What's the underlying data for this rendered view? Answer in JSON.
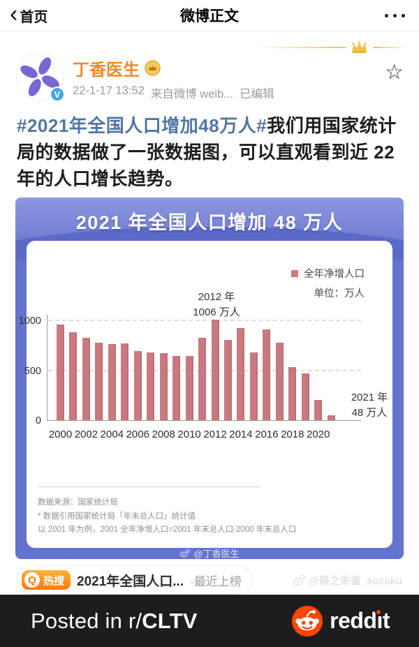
{
  "nav": {
    "back_label": "首页",
    "title": "微博正文"
  },
  "post": {
    "author": "丁香医生",
    "timestamp": "22-1-17 13:52",
    "source": "来自微博 weib...",
    "edited": "已编辑",
    "hashtag": "#2021年全国人口增加48万人#",
    "body": "我们用国家统计局的数据做了一张数据图，可以直观看到近 22 年的人口增长趋势。"
  },
  "chart_data": {
    "type": "bar",
    "title": "2021 年全国人口增加 48 万人",
    "legend": "全年净增人口",
    "unit_label": "单位：万人",
    "categories": [
      2000,
      2001,
      2002,
      2003,
      2004,
      2005,
      2006,
      2007,
      2008,
      2009,
      2010,
      2011,
      2012,
      2013,
      2014,
      2015,
      2016,
      2017,
      2018,
      2019,
      2020,
      2021
    ],
    "values": [
      957,
      884,
      826,
      774,
      761,
      768,
      692,
      681,
      673,
      646,
      641,
      825,
      1006,
      804,
      920,
      680,
      906,
      779,
      530,
      467,
      204,
      48
    ],
    "yticks": [
      0,
      500,
      1000
    ],
    "ylim": [
      0,
      1100
    ],
    "xtick_labels": [
      "2000",
      "2002",
      "2004",
      "2006",
      "2008",
      "2010",
      "2012",
      "2014",
      "2016",
      "2018",
      "2020"
    ],
    "annotations": [
      {
        "label": "2012 年",
        "value_label": "1006 万人"
      },
      {
        "label": "2021 年",
        "value_label": "48 万人"
      }
    ],
    "bar_color": "#c9797f",
    "source_line1": "数据来源：国家统计局",
    "source_line2": "* 数据引用国家统计局「年末总人口」统计值",
    "source_line3": "以 2001 年为例，2001 全年净增人口=2001 年末总人口-2000 年末总人口",
    "watermark": "@丁香医生"
  },
  "hot_search": {
    "badge": "热搜",
    "text": "2021年全国人口...",
    "suffix": "·最近上榜"
  },
  "watermark_right": "@萌之朱雀_suzaku",
  "footer": {
    "posted_prefix": "Posted in r/",
    "subreddit": "CLTV",
    "brand": "reddit"
  },
  "icons": {
    "back_chevron": "‹",
    "star": "☆",
    "verified": "V",
    "hot_search_q": "Q"
  },
  "colors": {
    "username_orange": "#ee8a2a",
    "link_blue": "#5276a3",
    "chart_blue": "#6473ce",
    "bar_pink": "#c9797f",
    "reddit_orange": "#ff4500",
    "hot_orange": "#ff7a00"
  }
}
